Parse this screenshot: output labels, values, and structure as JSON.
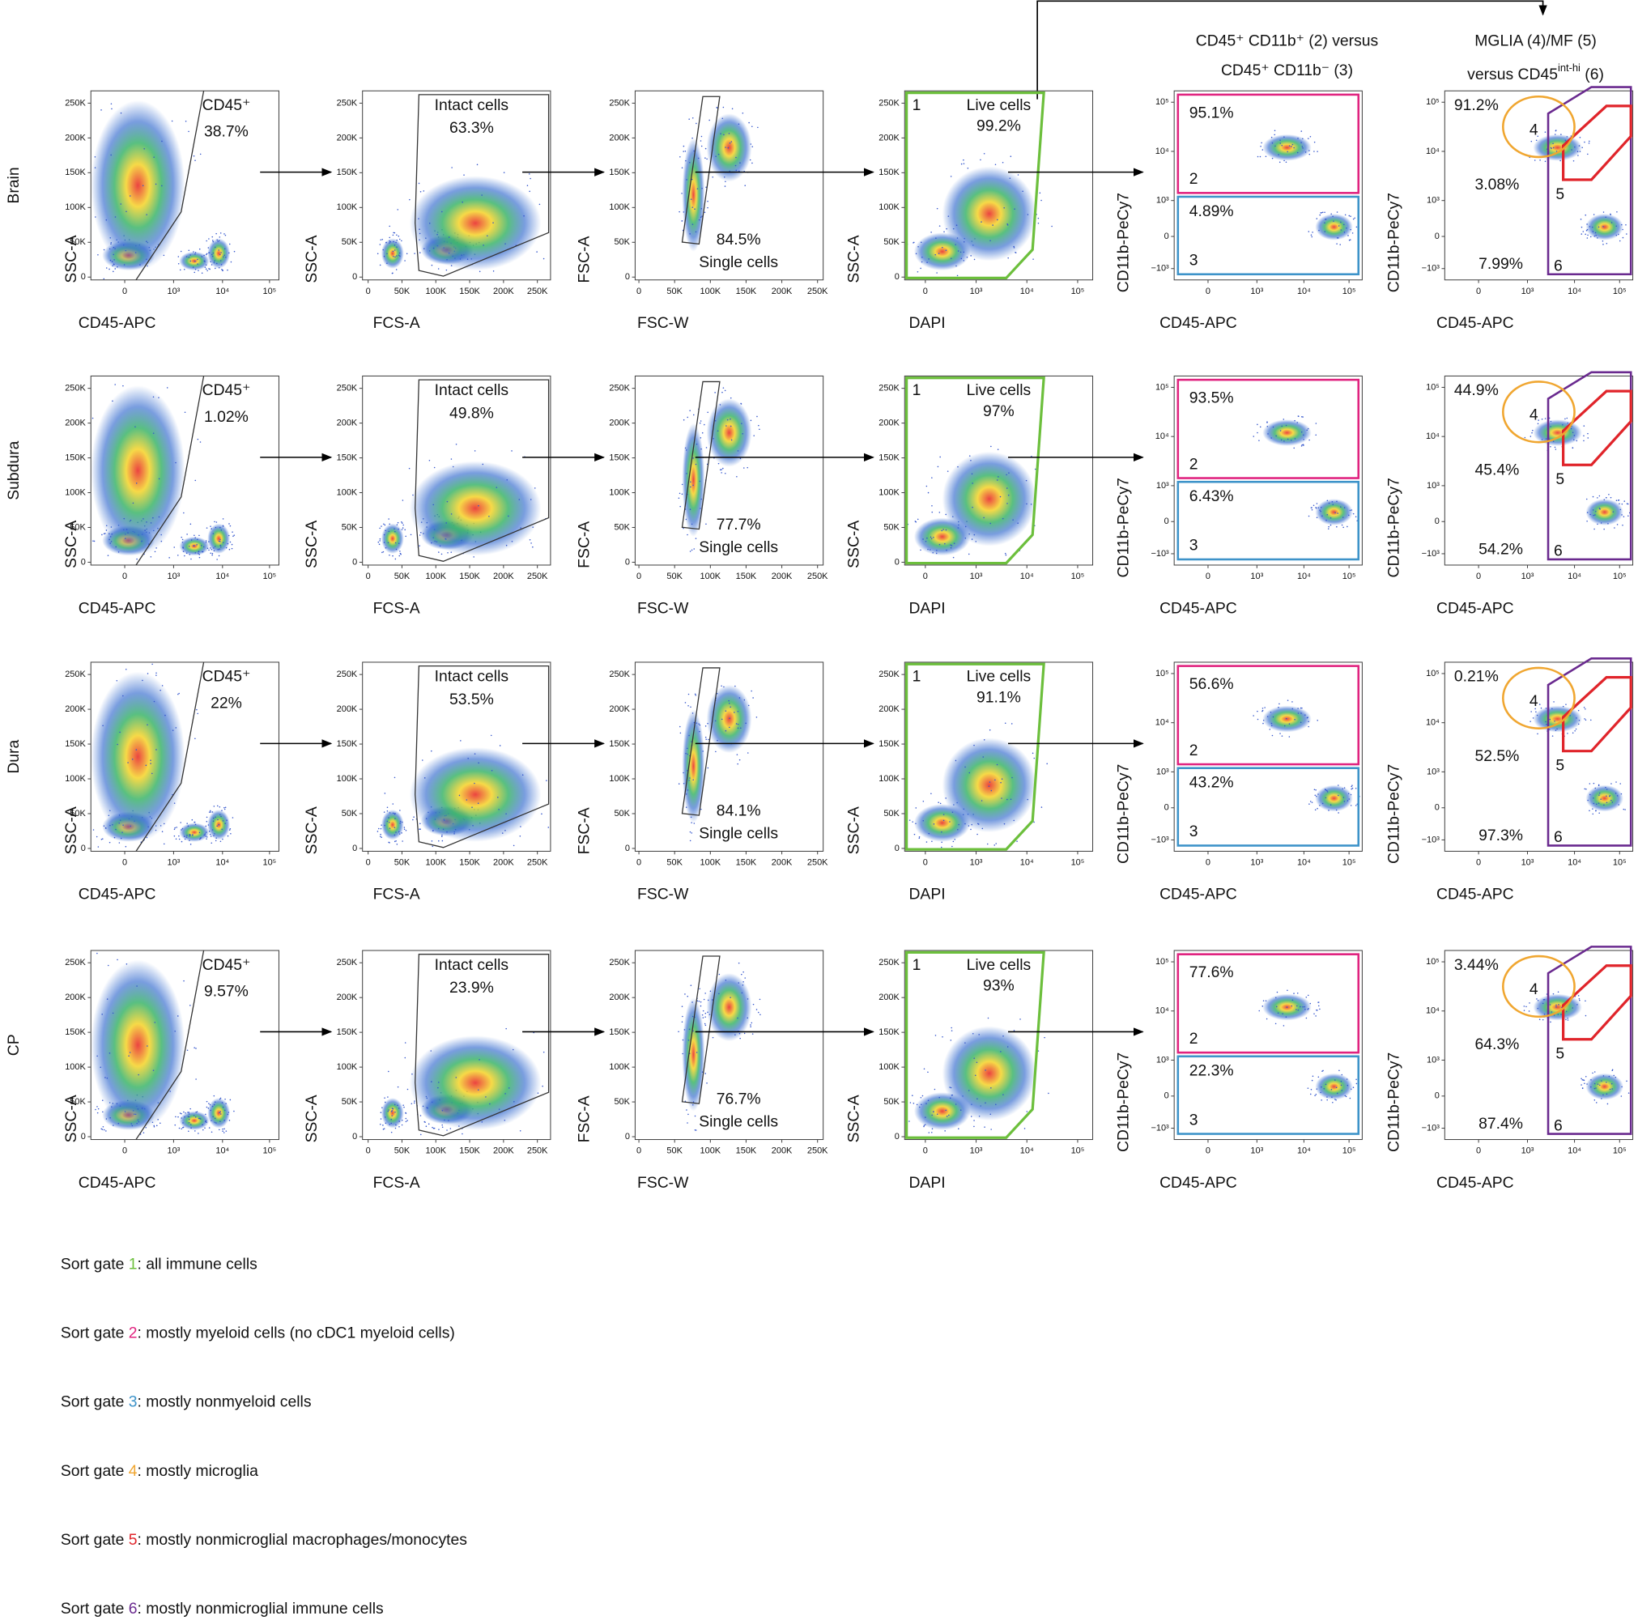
{
  "headers": {
    "col5": [
      "CD45⁺ CD11b⁺ (2) versus",
      "CD45⁺ CD11b⁻ (3)"
    ],
    "col6": {
      "line1": "MGLIA (4)/MF (5)",
      "line2": "versus CD45",
      "line2_sup": "int-hi",
      "line2_end": " (6)"
    }
  },
  "axis_labels": {
    "ssc": "SSC-A",
    "cd45": "CD45-APC",
    "fcs": "FCS-A",
    "fsc_a": "FSC-A",
    "fsc_w": "FSC-W",
    "dapi": "DAPI",
    "cd11b": "CD11b-PeCy7"
  },
  "ticks": {
    "linear": [
      "0",
      "50K",
      "100K",
      "150K",
      "200K",
      "250K"
    ],
    "log_x": [
      "0",
      "10³",
      "10⁴",
      "10⁵"
    ],
    "log_y": [
      "−10³",
      "0",
      "10³",
      "10⁴",
      "10⁵"
    ]
  },
  "gate_labels": {
    "cd45": "CD45⁺",
    "intact": "Intact cells",
    "single": "Single cells",
    "live": "Live cells"
  },
  "gate_numbers": [
    "1",
    "2",
    "3",
    "4",
    "5",
    "6"
  ],
  "rows": [
    {
      "name": "Brain",
      "cd45": "38.7%",
      "intact": "63.3%",
      "single": "84.5%",
      "live": "99.2%",
      "g2": "95.1%",
      "g3": "4.89%",
      "g4": "91.2%",
      "g5": "3.08%",
      "g6": "7.99%"
    },
    {
      "name": "Subdura",
      "cd45": "1.02%",
      "intact": "49.8%",
      "single": "77.7%",
      "live": "97%",
      "g2": "93.5%",
      "g3": "6.43%",
      "g4": "44.9%",
      "g5": "45.4%",
      "g6": "54.2%"
    },
    {
      "name": "Dura",
      "cd45": "22%",
      "intact": "53.5%",
      "single": "84.1%",
      "live": "91.1%",
      "g2": "56.6%",
      "g3": "43.2%",
      "g4": "0.21%",
      "g5": "52.5%",
      "g6": "97.3%"
    },
    {
      "name": "CP",
      "cd45": "9.57%",
      "intact": "23.9%",
      "single": "76.7%",
      "live": "93%",
      "g2": "77.6%",
      "g3": "22.3%",
      "g4": "3.44%",
      "g5": "64.3%",
      "g6": "87.4%"
    }
  ],
  "legend": {
    "prefix": "Sort gate",
    "items": [
      {
        "number": "1",
        "text": ": all immune cells"
      },
      {
        "number": "2",
        "text": ": mostly myeloid cells (no cDC1 myeloid cells)"
      },
      {
        "number": "3",
        "text": ": mostly nonmyeloid cells"
      },
      {
        "number": "4",
        "text": ": mostly microglia"
      },
      {
        "number": "5",
        "text": ": mostly nonmicroglial macrophages/monocytes"
      },
      {
        "number": "6",
        "text": ": mostly nonmicroglial immune cells"
      }
    ]
  }
}
